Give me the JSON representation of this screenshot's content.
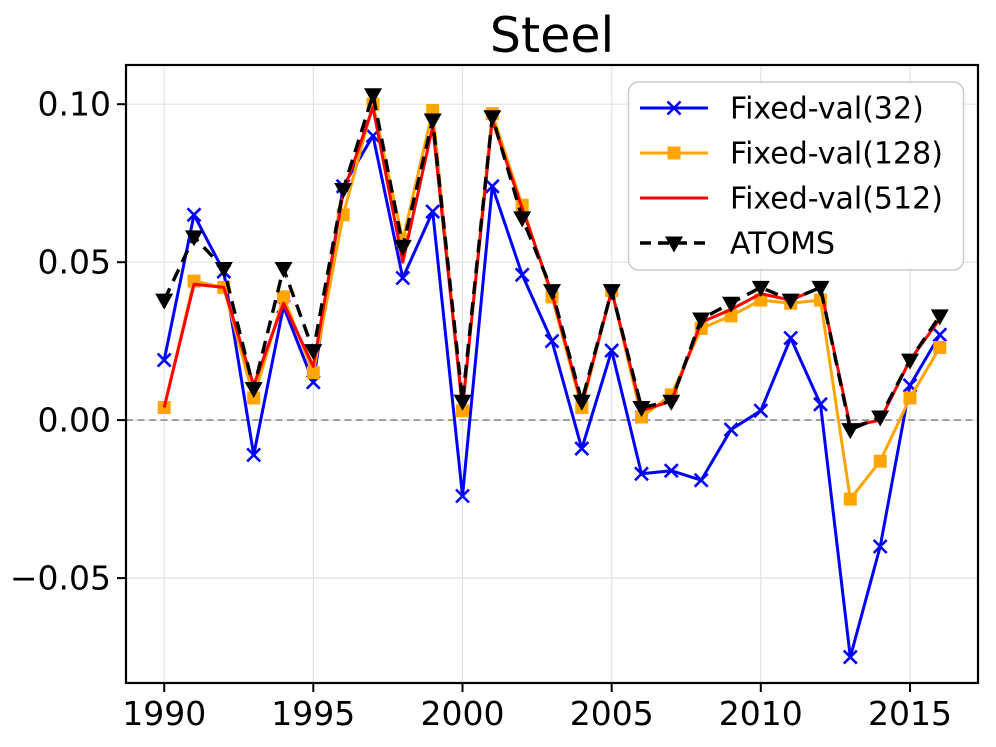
{
  "chart_data": {
    "type": "line",
    "title": "Steel",
    "x": [
      1990,
      1991,
      1992,
      1993,
      1994,
      1995,
      1996,
      1997,
      1998,
      1999,
      2000,
      2001,
      2002,
      2003,
      2004,
      2005,
      2006,
      2007,
      2008,
      2009,
      2010,
      2011,
      2012,
      2013,
      2014,
      2015,
      2016
    ],
    "series": [
      {
        "name": "Fixed-val(32)",
        "color": "#0000ff",
        "marker": "x",
        "linestyle": "solid",
        "values": [
          0.019,
          0.065,
          0.047,
          -0.011,
          0.036,
          0.012,
          0.074,
          0.09,
          0.045,
          0.066,
          -0.024,
          0.074,
          0.046,
          0.025,
          -0.009,
          0.022,
          -0.017,
          -0.016,
          -0.019,
          -0.003,
          0.003,
          0.026,
          0.005,
          -0.075,
          -0.04,
          0.011,
          0.027
        ]
      },
      {
        "name": "Fixed-val(128)",
        "color": "#ffa500",
        "marker": "square",
        "linestyle": "solid",
        "values": [
          0.004,
          0.044,
          0.042,
          0.007,
          0.039,
          0.015,
          0.065,
          0.1,
          0.057,
          0.098,
          0.003,
          0.097,
          0.068,
          0.039,
          0.004,
          0.041,
          0.001,
          0.008,
          0.029,
          0.033,
          0.038,
          0.037,
          0.038,
          -0.025,
          -0.013,
          0.007,
          0.023
        ]
      },
      {
        "name": "Fixed-val(512)",
        "color": "#ff0000",
        "marker": "none",
        "linestyle": "solid",
        "values": [
          0.004,
          0.043,
          0.042,
          0.011,
          0.037,
          0.017,
          0.072,
          0.099,
          0.05,
          0.093,
          0.004,
          0.095,
          0.067,
          0.04,
          0.005,
          0.041,
          0.003,
          0.006,
          0.031,
          0.035,
          0.04,
          0.038,
          0.042,
          -0.002,
          0.0,
          0.019,
          0.032
        ]
      },
      {
        "name": "ATOMS",
        "color": "#000000",
        "marker": "triangle-down",
        "linestyle": "dashed",
        "values": [
          0.038,
          0.058,
          0.048,
          0.01,
          0.048,
          0.022,
          0.073,
          0.103,
          0.055,
          0.095,
          0.006,
          0.096,
          0.064,
          0.041,
          0.006,
          0.041,
          0.004,
          0.006,
          0.032,
          0.037,
          0.042,
          0.038,
          0.042,
          -0.003,
          0.001,
          0.019,
          0.033
        ]
      }
    ],
    "x_ticks": [
      {
        "year": 1990,
        "label": "1990"
      },
      {
        "year": 1995,
        "label": "1995"
      },
      {
        "year": 2000,
        "label": "2000"
      },
      {
        "year": 2005,
        "label": "2005"
      },
      {
        "year": 2010,
        "label": "2010"
      },
      {
        "year": 2015,
        "label": "2015"
      }
    ],
    "y_ticks": [
      {
        "value": 0.1,
        "label": "0.10"
      },
      {
        "value": 0.05,
        "label": "0.05"
      },
      {
        "value": 0.0,
        "label": "0.00"
      },
      {
        "value": -0.05,
        "label": "−0.05"
      }
    ],
    "xlim": [
      1988.72,
      2017.28
    ],
    "ylim": [
      -0.0832,
      0.1124
    ],
    "grid": true,
    "grid_color": "#e3e3e3",
    "zero_line": true,
    "zero_line_color": "#8c8c8c",
    "legend_position": "upper right"
  }
}
